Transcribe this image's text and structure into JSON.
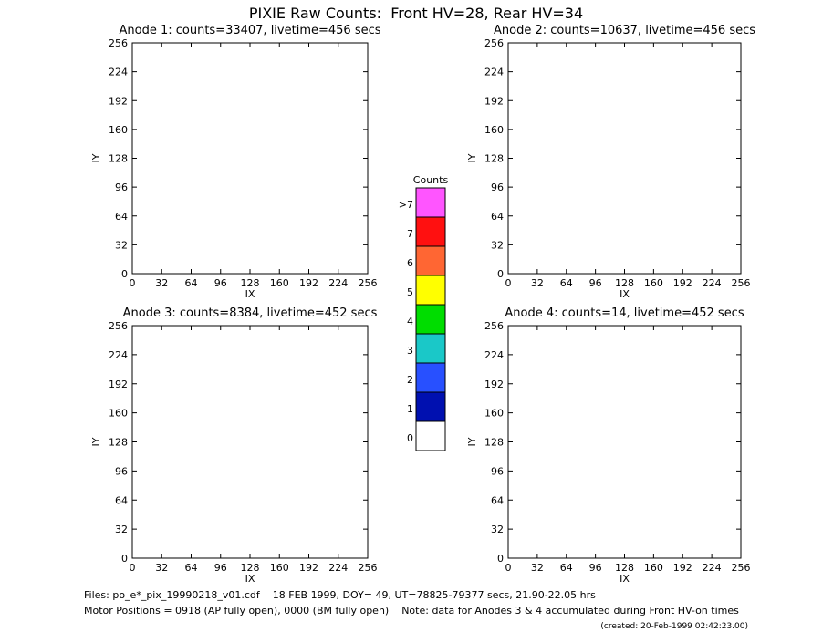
{
  "header": {
    "title": "PIXIE Raw Counts:  Front HV=28, Rear HV=34"
  },
  "chart_data": [
    {
      "type": "heatmap",
      "title": "Anode 1: counts=33407, livetime=456 secs",
      "xlabel": "IX",
      "ylabel": "IY",
      "xlim": [
        0,
        256
      ],
      "ylim": [
        0,
        256
      ],
      "xticks": [
        0,
        32,
        64,
        96,
        128,
        160,
        192,
        224,
        256
      ],
      "yticks": [
        0,
        32,
        64,
        96,
        128,
        160,
        192,
        224,
        256
      ]
    },
    {
      "type": "heatmap",
      "title": "Anode 2: counts=10637, livetime=456 secs",
      "xlabel": "IX",
      "ylabel": "IY",
      "xlim": [
        0,
        256
      ],
      "ylim": [
        0,
        256
      ],
      "xticks": [
        0,
        32,
        64,
        96,
        128,
        160,
        192,
        224,
        256
      ],
      "yticks": [
        0,
        32,
        64,
        96,
        128,
        160,
        192,
        224,
        256
      ]
    },
    {
      "type": "heatmap",
      "title": "Anode 3: counts=8384, livetime=452 secs",
      "xlabel": "IX",
      "ylabel": "IY",
      "xlim": [
        0,
        256
      ],
      "ylim": [
        0,
        256
      ],
      "xticks": [
        0,
        32,
        64,
        96,
        128,
        160,
        192,
        224,
        256
      ],
      "yticks": [
        0,
        32,
        64,
        96,
        128,
        160,
        192,
        224,
        256
      ]
    },
    {
      "type": "heatmap",
      "title": "Anode 4: counts=14, livetime=452 secs",
      "xlabel": "IX",
      "ylabel": "IY",
      "xlim": [
        0,
        256
      ],
      "ylim": [
        0,
        256
      ],
      "xticks": [
        0,
        32,
        64,
        96,
        128,
        160,
        192,
        224,
        256
      ],
      "yticks": [
        0,
        32,
        64,
        96,
        128,
        160,
        192,
        224,
        256
      ]
    }
  ],
  "colorbar": {
    "title": "Counts",
    "labels": [
      "0",
      "1",
      "2",
      "3",
      "4",
      "5",
      "6",
      "7",
      ">7"
    ],
    "colors": [
      "#ffffff",
      "#0010b0",
      "#2850ff",
      "#1ac8c8",
      "#00dd00",
      "#ffff00",
      "#ff6633",
      "#ff1010",
      "#ff55ff"
    ]
  },
  "footer": {
    "files": "Files: po_e*_pix_19990218_v01.cdf    18 FEB 1999, DOY= 49, UT=78825-79377 secs, 21.90-22.05 hrs",
    "motor": "Motor Positions = 0918 (AP fully open), 0000 (BM fully open)    Note: data for Anodes 3 & 4 accumulated during Front HV-on times",
    "created": "(created: 20-Feb-1999 02:42:23.00)"
  }
}
